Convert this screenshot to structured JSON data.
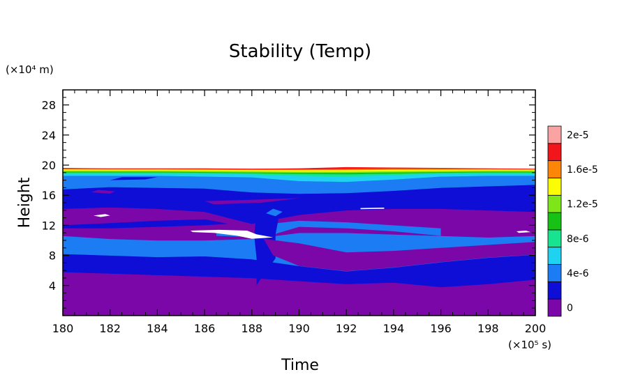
{
  "chart_data": {
    "type": "heatmap",
    "title": "Stability (Temp)",
    "xlabel": "Time",
    "ylabel": "Height",
    "x_unit": "(×10⁵ s)",
    "y_unit": "(×10⁴ m)",
    "xlim": [
      180,
      200
    ],
    "ylim": [
      0,
      30
    ],
    "x_ticks": [
      180,
      182,
      184,
      186,
      188,
      190,
      192,
      194,
      196,
      198,
      200
    ],
    "x_tick_labels": [
      "180",
      "182",
      "184",
      "186",
      "188",
      "190",
      "192",
      "194",
      "196",
      "198",
      "200"
    ],
    "y_ticks": [
      4,
      8,
      12,
      16,
      20,
      24,
      28
    ],
    "y_tick_labels": [
      "4",
      "8",
      "12",
      "16",
      "20",
      "24",
      "28"
    ],
    "colorbar": {
      "levels": [
        {
          "value": 0,
          "color": "#7c07a9"
        },
        {
          "value": 2e-06,
          "color": "#0f0ed6"
        },
        {
          "value": 4e-06,
          "color": "#1c7cf3"
        },
        {
          "value": 6e-06,
          "color": "#1fd3f0"
        },
        {
          "value": 8e-06,
          "color": "#18e38e"
        },
        {
          "value": 1e-05,
          "color": "#17c116"
        },
        {
          "value": 1.2e-05,
          "color": "#7ee518"
        },
        {
          "value": 1.4e-05,
          "color": "#fcfc07"
        },
        {
          "value": 1.6e-05,
          "color": "#fc8607"
        },
        {
          "value": 1.8e-05,
          "color": "#f2161c"
        },
        {
          "value": 2e-05,
          "color": "#f9a3a3"
        }
      ],
      "labels": [
        "2e-5",
        "1.6e-5",
        "1.2e-5",
        "8e-6",
        "4e-6",
        "0"
      ],
      "label_values": [
        2e-05,
        1.6e-05,
        1.2e-05,
        8e-06,
        4e-06,
        0
      ]
    },
    "bands": [
      {
        "name": "purple",
        "color": "#7c07a9",
        "lower": [
          0,
          0,
          0,
          0,
          0,
          0,
          0,
          0,
          0,
          0,
          0
        ],
        "upper": [
          5.8,
          5.6,
          5.4,
          5.2,
          5.0,
          4.6,
          4.2,
          4.4,
          3.8,
          4.2,
          4.8
        ]
      },
      {
        "name": "dark-blue",
        "color": "#0f0ed6",
        "lower": [
          5.8,
          5.6,
          5.4,
          5.2,
          5.0,
          4.6,
          4.2,
          4.4,
          3.8,
          4.2,
          4.8
        ],
        "upper": [
          8.2,
          8.0,
          7.8,
          7.9,
          7.5,
          6.6,
          5.9,
          6.4,
          7.1,
          7.7,
          8.1
        ]
      },
      {
        "name": "medium-blue",
        "color": "#1c7cf3",
        "lower": [
          8.2,
          8.0,
          7.8,
          7.9,
          7.5,
          6.6,
          5.9,
          6.4,
          7.1,
          7.7,
          8.1
        ],
        "upper": [
          10.6,
          10.2,
          10.0,
          10.0,
          10.2,
          11.0,
          11.0,
          10.8,
          10.6,
          10.4,
          10.6
        ]
      },
      {
        "name": "purple-upper",
        "color": "#7c07a9",
        "lower": [
          10.6,
          10.2,
          10.0,
          10.0,
          10.2,
          11.0,
          11.0,
          10.8,
          10.6,
          10.4,
          10.6
        ],
        "upper": [
          14.2,
          14.4,
          14.2,
          13.8,
          12.2,
          13.4,
          14.0,
          14.2,
          14.2,
          14.0,
          13.8
        ]
      },
      {
        "name": "dark-blue-upper",
        "color": "#0f0ed6",
        "lower": [
          14.2,
          14.4,
          14.2,
          13.8,
          12.2,
          13.4,
          14.0,
          14.2,
          14.2,
          14.0,
          13.8
        ],
        "upper": [
          16.8,
          17.1,
          17.0,
          16.9,
          16.4,
          16.2,
          16.3,
          16.6,
          17.0,
          17.2,
          17.4
        ]
      },
      {
        "name": "medium-blue-upper",
        "color": "#1c7cf3",
        "lower": [
          16.8,
          17.1,
          17.0,
          16.9,
          16.4,
          16.2,
          16.3,
          16.6,
          17.0,
          17.2,
          17.4
        ],
        "upper": [
          18.6,
          18.6,
          18.6,
          18.5,
          18.4,
          17.9,
          17.8,
          18.1,
          18.5,
          18.6,
          18.6
        ]
      },
      {
        "name": "cyan",
        "color": "#1fd3f0",
        "lower": [
          18.6,
          18.6,
          18.6,
          18.5,
          18.4,
          17.9,
          17.8,
          18.1,
          18.5,
          18.6,
          18.6
        ],
        "upper": [
          18.9,
          18.9,
          18.9,
          18.9,
          18.8,
          18.6,
          18.5,
          18.7,
          18.9,
          18.9,
          18.9
        ]
      },
      {
        "name": "green-light",
        "color": "#18e38e",
        "lower": [
          18.9,
          18.9,
          18.9,
          18.9,
          18.8,
          18.6,
          18.5,
          18.7,
          18.9,
          18.9,
          18.9
        ],
        "upper": [
          19.05,
          19.05,
          19.05,
          19.0,
          18.95,
          18.85,
          18.8,
          18.9,
          19.0,
          19.05,
          19.05
        ]
      },
      {
        "name": "green",
        "color": "#17c116",
        "lower": [
          19.05,
          19.05,
          19.05,
          19.0,
          18.95,
          18.85,
          18.8,
          18.9,
          19.0,
          19.05,
          19.05
        ],
        "upper": [
          19.15,
          19.15,
          19.15,
          19.1,
          19.05,
          19.0,
          19.0,
          19.05,
          19.1,
          19.15,
          19.15
        ]
      },
      {
        "name": "yellow-green",
        "color": "#7ee518",
        "lower": [
          19.15,
          19.15,
          19.15,
          19.1,
          19.05,
          19.0,
          19.0,
          19.05,
          19.1,
          19.15,
          19.15
        ],
        "upper": [
          19.3,
          19.3,
          19.3,
          19.25,
          19.2,
          19.15,
          19.15,
          19.2,
          19.25,
          19.3,
          19.3
        ]
      },
      {
        "name": "yellow",
        "color": "#fcfc07",
        "lower": [
          19.3,
          19.3,
          19.3,
          19.25,
          19.2,
          19.15,
          19.15,
          19.2,
          19.25,
          19.3,
          19.3
        ],
        "upper": [
          19.45,
          19.45,
          19.45,
          19.4,
          19.35,
          19.35,
          19.35,
          19.4,
          19.4,
          19.45,
          19.45
        ]
      },
      {
        "name": "orange",
        "color": "#fc8607",
        "lower": [
          19.45,
          19.45,
          19.45,
          19.4,
          19.35,
          19.35,
          19.35,
          19.4,
          19.4,
          19.45,
          19.45
        ],
        "upper": [
          19.55,
          19.5,
          19.5,
          19.5,
          19.45,
          19.45,
          19.5,
          19.55,
          19.55,
          19.5,
          19.45
        ]
      },
      {
        "name": "red",
        "color": "#f2161c",
        "lower": [
          19.55,
          19.5,
          19.5,
          19.5,
          19.45,
          19.45,
          19.5,
          19.55,
          19.55,
          19.5,
          19.45
        ],
        "upper": [
          19.6,
          19.55,
          19.55,
          19.55,
          19.5,
          19.55,
          19.7,
          19.65,
          19.6,
          19.55,
          19.5
        ]
      }
    ],
    "patches": [
      {
        "color": "#1c7cf3",
        "points": [
          [
            186.5,
            10.6
          ],
          [
            188.5,
            10.4
          ],
          [
            190,
            11.8
          ],
          [
            192,
            11.6
          ],
          [
            194,
            11.2
          ],
          [
            196,
            10.6
          ],
          [
            196,
            11.6
          ],
          [
            192,
            12.4
          ],
          [
            190,
            12.6
          ],
          [
            188.8,
            12.2
          ],
          [
            188.2,
            10.9
          ],
          [
            186.5,
            11.0
          ]
        ]
      },
      {
        "color": "#0f0ed6",
        "points": [
          [
            180,
            12.0
          ],
          [
            182,
            12.3
          ],
          [
            184,
            12.6
          ],
          [
            186,
            12.8
          ],
          [
            187,
            12.2
          ],
          [
            186,
            12.0
          ],
          [
            184,
            11.8
          ],
          [
            182,
            11.6
          ],
          [
            180,
            11.6
          ]
        ]
      },
      {
        "color": "#0f0ed6",
        "points": [
          [
            188.4,
            5.0
          ],
          [
            189,
            7.6
          ],
          [
            189,
            10.8
          ],
          [
            189.2,
            14.0
          ],
          [
            188.6,
            16.0
          ],
          [
            188.2,
            14.0
          ],
          [
            188.1,
            10.6
          ],
          [
            188.2,
            7.6
          ],
          [
            188.2,
            4.0
          ]
        ]
      },
      {
        "color": "#7c07a9",
        "points": [
          [
            188.5,
            10.2
          ],
          [
            190,
            9.6
          ],
          [
            192,
            8.4
          ],
          [
            194,
            8.6
          ],
          [
            196,
            9.0
          ],
          [
            198,
            9.4
          ],
          [
            200,
            9.8
          ],
          [
            200,
            8.1
          ],
          [
            198,
            7.7
          ],
          [
            196,
            7.1
          ],
          [
            194,
            6.4
          ],
          [
            192,
            5.9
          ],
          [
            190,
            6.6
          ],
          [
            188.9,
            8.0
          ]
        ]
      },
      {
        "color": "#7c07a9",
        "points": [
          [
            181.2,
            16.4
          ],
          [
            182,
            16.2
          ],
          [
            182.2,
            16.5
          ],
          [
            181.5,
            16.7
          ]
        ]
      },
      {
        "color": "#0f0ed6",
        "points": [
          [
            182,
            18.0
          ],
          [
            183.5,
            18.1
          ],
          [
            184,
            18.4
          ],
          [
            182.5,
            18.4
          ]
        ]
      },
      {
        "color": "#7c07a9",
        "points": [
          [
            186,
            15.2
          ],
          [
            188,
            15.4
          ],
          [
            190,
            15.6
          ],
          [
            188.4,
            15.0
          ],
          [
            186.4,
            14.8
          ]
        ]
      },
      {
        "color": "#1c7cf3",
        "points": [
          [
            188.6,
            13.6
          ],
          [
            189,
            13.2
          ],
          [
            189.3,
            13.8
          ],
          [
            188.9,
            14.2
          ]
        ]
      },
      {
        "color": "#ffffff",
        "points": [
          [
            181.3,
            13.3
          ],
          [
            181.8,
            13.5
          ],
          [
            182,
            13.3
          ],
          [
            181.6,
            13.1
          ]
        ]
      },
      {
        "color": "#ffffff",
        "points": [
          [
            185.4,
            11.3
          ],
          [
            186.6,
            11.4
          ],
          [
            187.8,
            11.3
          ],
          [
            188.2,
            10.8
          ],
          [
            188.9,
            10.4
          ],
          [
            188,
            10.2
          ],
          [
            187.4,
            10.6
          ],
          [
            186.4,
            11.0
          ],
          [
            185.5,
            11.1
          ]
        ]
      },
      {
        "color": "#ffffff",
        "points": [
          [
            192.6,
            14.3
          ],
          [
            193.6,
            14.35
          ],
          [
            193.6,
            14.2
          ],
          [
            192.6,
            14.15
          ]
        ]
      },
      {
        "color": "#ffffff",
        "points": [
          [
            199.2,
            11.2
          ],
          [
            199.6,
            11.3
          ],
          [
            199.8,
            11.1
          ],
          [
            199.3,
            11.0
          ]
        ]
      }
    ]
  }
}
